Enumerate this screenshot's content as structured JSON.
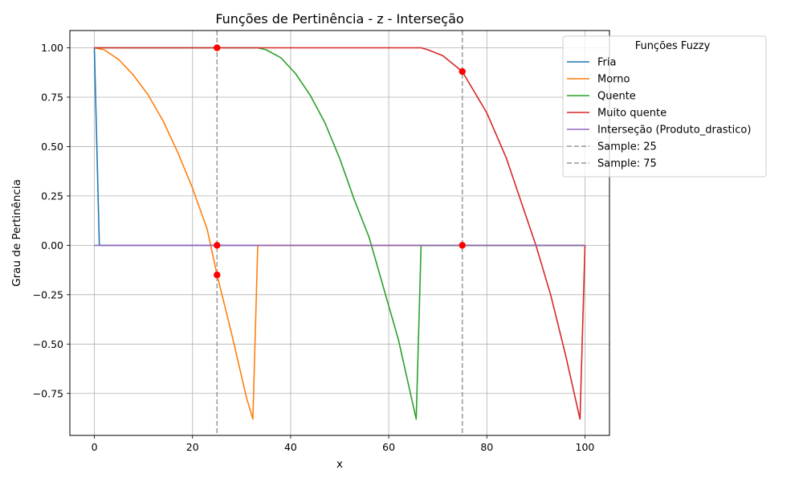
{
  "chart_data": {
    "type": "line",
    "title": "Funções de Pertinência - z - Interseção",
    "xlabel": "x",
    "ylabel": "Grau de Pertinência",
    "xlim": [
      -5,
      105
    ],
    "ylim": [
      -0.9625,
      1.0875
    ],
    "xticks": [
      0,
      20,
      40,
      60,
      80,
      100
    ],
    "yticks": [
      -0.75,
      -0.5,
      -0.25,
      0.0,
      0.25,
      0.5,
      0.75,
      1.0
    ],
    "ytick_labels": [
      "−0.75",
      "−0.50",
      "−0.25",
      "0.00",
      "0.25",
      "0.50",
      "0.75",
      "1.00"
    ],
    "grid": true,
    "legend": {
      "title": "Funções Fuzzy",
      "position": "upper-right-outside"
    },
    "series": [
      {
        "name": "Fria",
        "color": "#1f77b4",
        "x": [
          0,
          1,
          100
        ],
        "y": [
          1.0,
          0.0,
          0.0
        ]
      },
      {
        "name": "Morno",
        "color": "#ff7f0e",
        "x": [
          0,
          2,
          5,
          8,
          11,
          14,
          17,
          20,
          23,
          25,
          28,
          31,
          32.3,
          33.3,
          100
        ],
        "y": [
          1.0,
          0.99,
          0.94,
          0.86,
          0.76,
          0.63,
          0.47,
          0.29,
          0.08,
          -0.15,
          -0.45,
          -0.77,
          -0.88,
          0.0,
          0.0
        ]
      },
      {
        "name": "Quente",
        "color": "#2ca02c",
        "x": [
          0,
          33.3,
          35,
          38,
          41,
          44,
          47,
          50,
          53,
          56,
          59,
          62,
          65.6,
          66.6,
          100
        ],
        "y": [
          1.0,
          1.0,
          0.99,
          0.95,
          0.87,
          0.76,
          0.62,
          0.44,
          0.23,
          0.04,
          -0.22,
          -0.48,
          -0.88,
          0.0,
          0.0
        ]
      },
      {
        "name": "Muito quente",
        "color": "#d62728",
        "x": [
          0,
          66.6,
          68,
          71,
          75,
          80,
          84,
          87,
          90,
          93,
          96,
          99,
          100
        ],
        "y": [
          1.0,
          1.0,
          0.99,
          0.96,
          0.88,
          0.67,
          0.44,
          0.22,
          0.0,
          -0.25,
          -0.55,
          -0.88,
          0.0
        ]
      },
      {
        "name": "Interseção (Produto_drastico)",
        "color": "#9467bd",
        "x": [
          0,
          100
        ],
        "y": [
          0.0,
          0.0
        ]
      }
    ],
    "vlines": [
      {
        "name": "Sample: 25",
        "x": 25,
        "color": "#999999",
        "style": "dashed"
      },
      {
        "name": "Sample: 75",
        "x": 75,
        "color": "#999999",
        "style": "dashed"
      }
    ],
    "markers": {
      "color": "#ff0000",
      "points": [
        {
          "x": 25,
          "y": 1.0
        },
        {
          "x": 25,
          "y": 0.0
        },
        {
          "x": 25,
          "y": -0.15
        },
        {
          "x": 75,
          "y": 0.88
        },
        {
          "x": 75,
          "y": 0.0
        }
      ]
    }
  }
}
